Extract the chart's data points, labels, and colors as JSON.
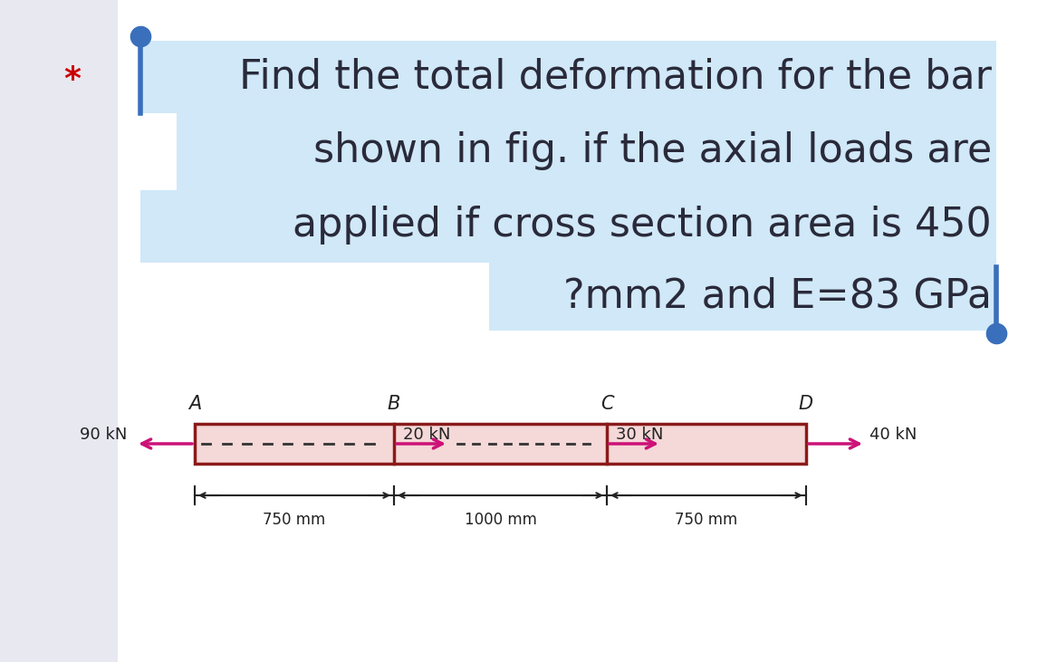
{
  "title_lines": [
    "Find the total deformation for the bar",
    "shown in fig. if the axial loads are",
    "applied if cross section area is 450",
    "?mm2 and E=83 GPa"
  ],
  "title_bg_color": "#d0e8f8",
  "title_text_color": "#2a2a3a",
  "title_fontsize": 32,
  "star_text": "*",
  "star_color": "#cc0000",
  "star_fontsize": 26,
  "bullet_color": "#3a6fbb",
  "sidebar_color": "#e8e8f0",
  "bar_fill_color": "#f5d8d8",
  "bar_edge_color": "#8b1a1a",
  "arrow_color": "#cc1177",
  "dash_color": "#333333",
  "force_labels": [
    "90 kN",
    "20 kN",
    "30 kN",
    "40 kN"
  ],
  "dim_labels": [
    "750 mm",
    "1000 mm",
    "750 mm"
  ],
  "dim_color": "#222222",
  "dim_fontsize": 12,
  "force_fontsize": 13,
  "point_fontsize": 15,
  "point_labels": [
    "A",
    "B",
    "C",
    "D"
  ]
}
